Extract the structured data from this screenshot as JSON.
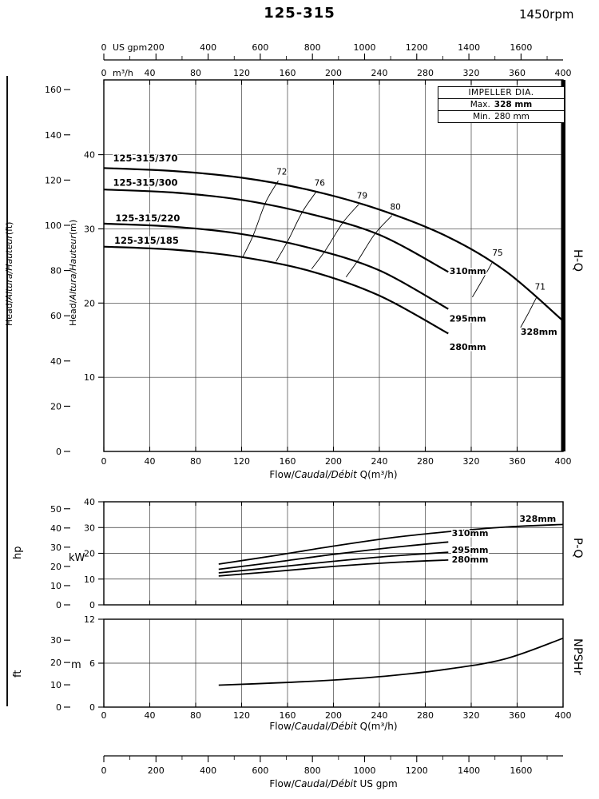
{
  "header": {
    "title": "125-315",
    "rpm": "1450rpm"
  },
  "impeller_box": {
    "title": "IMPELLER DIA.",
    "max_label": "Max.",
    "max_value": "328 mm",
    "min_label": "Min.",
    "min_value": "280 mm"
  },
  "side_labels": {
    "hq": "H-Q",
    "pq": "P-Q",
    "npshr": "NPSHr",
    "hp": "hp",
    "kw": "kW",
    "ft": "ft",
    "m": "m"
  },
  "axis_titles": {
    "head_ft": {
      "pre": "Head/",
      "italic": "Altura/Hauteur",
      "post": "(ft)"
    },
    "head_m": {
      "pre": "Head/",
      "italic": "Altura/Hauteur",
      "post": "(m)"
    },
    "flow_q1": {
      "pre": "Flow/",
      "italic": "Caudal/Débit",
      "post": " Q(m³/h)"
    },
    "flow_q3": {
      "pre": "Flow/",
      "italic": "Caudal/Débit",
      "post": " Q(m³/h)"
    },
    "flow_gpm": {
      "pre": "Flow/",
      "italic": "Caudal/Débit",
      "post": "   US gpm"
    },
    "usgpm_unit": "US gpm",
    "m3h_unit": "m³/h"
  },
  "bottom_axis": {
    "unit": "US gpm",
    "ticks": [
      0,
      200,
      400,
      600,
      800,
      1000,
      1200,
      1400,
      1600
    ]
  },
  "chart_data": [
    {
      "id": "hq",
      "type": "line",
      "title": "H-Q",
      "x": {
        "unit": "m³/h",
        "range": [
          0,
          400
        ],
        "ticks": [
          0,
          40,
          80,
          120,
          160,
          200,
          240,
          280,
          320,
          360,
          400
        ],
        "title": "Flow/Caudal/Débit Q(m³/h)"
      },
      "x_top": {
        "unit": "US gpm",
        "ticks": [
          0,
          200,
          400,
          600,
          800,
          1000,
          1200,
          1400,
          1600
        ]
      },
      "y": {
        "unit": "m",
        "range": [
          0,
          50
        ],
        "ticks": [
          10,
          20,
          30,
          40
        ],
        "title": "Head/Altura/Hauteur(m)"
      },
      "y2": {
        "unit": "ft",
        "ticks": [
          0,
          20,
          40,
          60,
          80,
          100,
          120,
          140,
          160
        ],
        "title": "Head/Altura/Hauteur(ft)"
      },
      "series": [
        {
          "name": "328mm",
          "points": [
            [
              0,
              38.2
            ],
            [
              60,
              37.8
            ],
            [
              120,
              36.9
            ],
            [
              180,
              35.2
            ],
            [
              240,
              32.6
            ],
            [
              300,
              28.9
            ],
            [
              350,
              24.3
            ],
            [
              400,
              17.6
            ]
          ],
          "label": {
            "text": "328mm",
            "q": 363,
            "v": 15.7
          }
        },
        {
          "name": "310mm",
          "points": [
            [
              0,
              35.3
            ],
            [
              60,
              34.9
            ],
            [
              120,
              33.9
            ],
            [
              180,
              32.0
            ],
            [
              240,
              29.2
            ],
            [
              300,
              24.2
            ]
          ],
          "label": {
            "text": "310mm",
            "q": 301,
            "v": 23.9
          }
        },
        {
          "name": "295mm",
          "points": [
            [
              0,
              30.7
            ],
            [
              60,
              30.3
            ],
            [
              120,
              29.3
            ],
            [
              180,
              27.4
            ],
            [
              240,
              24.4
            ],
            [
              300,
              19.2
            ]
          ],
          "label": {
            "text": "295mm",
            "q": 301,
            "v": 17.5
          }
        },
        {
          "name": "280mm",
          "points": [
            [
              0,
              27.6
            ],
            [
              60,
              27.2
            ],
            [
              120,
              26.2
            ],
            [
              180,
              24.3
            ],
            [
              240,
              21.0
            ],
            [
              300,
              15.9
            ]
          ],
          "label": {
            "text": "280mm",
            "q": 301,
            "v": 13.7
          }
        }
      ],
      "model_labels": [
        {
          "text": "125-315/370",
          "q": 8,
          "v": 39.1
        },
        {
          "text": "125-315/300",
          "q": 8,
          "v": 35.8
        },
        {
          "text": "125-315/220",
          "q": 10,
          "v": 31.0
        },
        {
          "text": "125-315/185",
          "q": 9,
          "v": 28.0
        }
      ],
      "efficiency_lines": [
        {
          "value": "72",
          "points": [
            [
              152,
              36.5
            ],
            [
              141,
              33.6
            ],
            [
              130,
              29.1
            ],
            [
              121,
              26.2
            ]
          ],
          "label": {
            "q": 155,
            "v": 37.3
          }
        },
        {
          "value": "76",
          "points": [
            [
              185,
              35.0
            ],
            [
              173,
              32.3
            ],
            [
              160,
              28.3
            ],
            [
              150,
              25.6
            ]
          ],
          "label": {
            "q": 188,
            "v": 35.8
          }
        },
        {
          "value": "79",
          "points": [
            [
              222,
              33.3
            ],
            [
              208,
              30.8
            ],
            [
              193,
              27.1
            ],
            [
              181,
              24.6
            ]
          ],
          "label": {
            "q": 225,
            "v": 34.1
          }
        },
        {
          "value": "80",
          "points": [
            [
              251,
              31.8
            ],
            [
              236,
              29.3
            ],
            [
              222,
              25.9
            ],
            [
              211,
              23.5
            ]
          ],
          "label": {
            "q": 254,
            "v": 32.6
          }
        },
        {
          "value": "75",
          "points": [
            [
              338,
              25.4
            ],
            [
              330,
              23.2
            ],
            [
              321,
              20.8
            ]
          ],
          "label": {
            "q": 343,
            "v": 26.4
          }
        },
        {
          "value": "71",
          "points": [
            [
              377,
              20.8
            ],
            [
              370,
              18.7
            ],
            [
              363,
              16.7
            ]
          ],
          "label": {
            "q": 380,
            "v": 21.8
          }
        }
      ]
    },
    {
      "id": "pq",
      "type": "line",
      "title": "P-Q",
      "x": {
        "unit": "m³/h",
        "range": [
          0,
          400
        ],
        "ticks": [
          0,
          40,
          80,
          120,
          160,
          200,
          240,
          280,
          320,
          360,
          400
        ]
      },
      "y": {
        "unit": "kW",
        "range": [
          0,
          40
        ],
        "ticks": [
          0,
          10,
          20,
          30,
          40
        ]
      },
      "y2": {
        "unit": "hp",
        "ticks": [
          0,
          10,
          20,
          30,
          40,
          50
        ]
      },
      "series": [
        {
          "name": "328mm",
          "points": [
            [
              100,
              15.8
            ],
            [
              150,
              19.2
            ],
            [
              200,
              22.8
            ],
            [
              250,
              26.0
            ],
            [
              300,
              28.4
            ],
            [
              350,
              30.2
            ],
            [
              400,
              31.2
            ]
          ],
          "label": {
            "text": "328mm",
            "q": 362,
            "v": 32.3
          }
        },
        {
          "name": "310mm",
          "points": [
            [
              100,
              13.8
            ],
            [
              150,
              16.6
            ],
            [
              200,
              19.6
            ],
            [
              250,
              22.2
            ],
            [
              300,
              24.4
            ]
          ],
          "label": {
            "text": "310mm",
            "q": 303,
            "v": 26.6
          }
        },
        {
          "name": "295mm",
          "points": [
            [
              100,
              12.4
            ],
            [
              150,
              14.6
            ],
            [
              200,
              16.9
            ],
            [
              250,
              18.9
            ],
            [
              300,
              20.4
            ]
          ],
          "label": {
            "text": "295mm",
            "q": 303,
            "v": 20.2
          }
        },
        {
          "name": "280mm",
          "points": [
            [
              100,
              11.2
            ],
            [
              150,
              13.0
            ],
            [
              200,
              14.9
            ],
            [
              250,
              16.4
            ],
            [
              300,
              17.4
            ]
          ],
          "label": {
            "text": "280mm",
            "q": 303,
            "v": 16.4
          }
        }
      ]
    },
    {
      "id": "npshr",
      "type": "line",
      "title": "NPSHr",
      "x": {
        "unit": "m³/h",
        "range": [
          0,
          400
        ],
        "ticks": [
          0,
          40,
          80,
          120,
          160,
          200,
          240,
          280,
          320,
          360,
          400
        ],
        "title": "Flow/Caudal/Débit Q(m³/h)"
      },
      "y": {
        "unit": "m",
        "range": [
          0,
          12
        ],
        "ticks": [
          0,
          6,
          12
        ]
      },
      "y2": {
        "unit": "ft",
        "ticks": [
          0,
          10,
          20,
          30
        ]
      },
      "series": [
        {
          "name": "NPSHr",
          "points": [
            [
              100,
              3.0
            ],
            [
              150,
              3.3
            ],
            [
              200,
              3.7
            ],
            [
              250,
              4.3
            ],
            [
              300,
              5.2
            ],
            [
              350,
              6.6
            ],
            [
              400,
              9.4
            ]
          ]
        }
      ]
    }
  ]
}
